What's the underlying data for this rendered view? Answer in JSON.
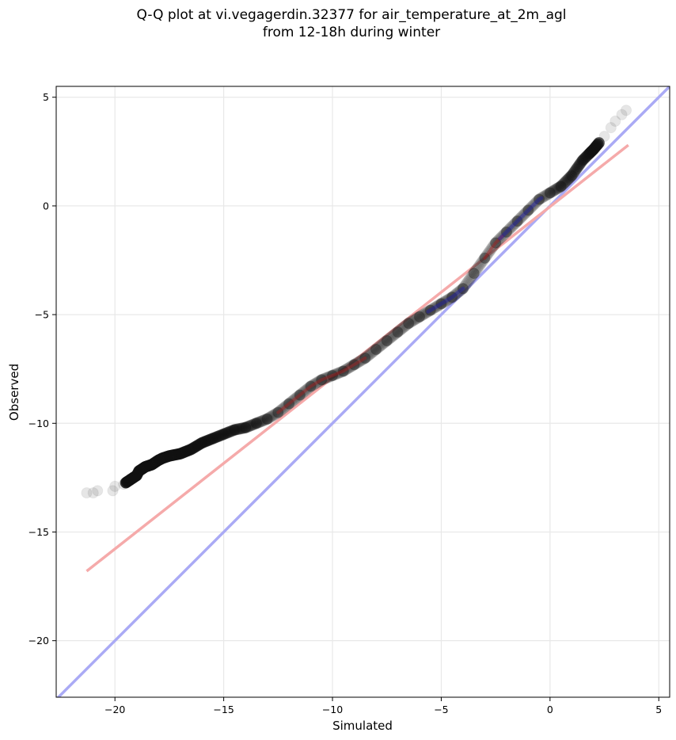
{
  "chart_data": {
    "type": "scatter",
    "title": "Q-Q plot at vi.vegagerdin.32377 for air_temperature_at_2m_agl",
    "subtitle": "from 12-18h during winter",
    "xlabel": "Simulated",
    "ylabel": "Observed",
    "xlim": [
      -22.7,
      5.5
    ],
    "ylim": [
      -22.6,
      5.5
    ],
    "xticks": [
      -20,
      -15,
      -10,
      -5,
      0,
      5
    ],
    "yticks": [
      -20,
      -15,
      -10,
      -5,
      0,
      5
    ],
    "xtick_labels": [
      "−20",
      "−15",
      "−10",
      "−5",
      "0",
      "5"
    ],
    "ytick_labels": [
      "−20",
      "−15",
      "−10",
      "−5",
      "0",
      "5"
    ],
    "grid": true,
    "legend": "none",
    "colors": {
      "points": "#333333",
      "identity_line": "#aaaaf5",
      "fit_line": "#f5aaaa",
      "overlay_blue": "#2020b0",
      "overlay_red": "#b02020",
      "grid": "#e8e8e8"
    },
    "series": [
      {
        "type": "quantiles",
        "x": [
          -21.3,
          -21.0,
          -20.8,
          -20.1,
          -20.0,
          -19.6,
          -19.3,
          -19.0,
          -18.9,
          -18.6,
          -18.3,
          -18.0,
          -17.8,
          -17.5,
          -17.0,
          -16.5,
          -16.0,
          -15.5,
          -15.0,
          -14.5,
          -14.0,
          -13.5,
          -13.0,
          -12.5,
          -12.0,
          -11.5,
          -11.0,
          -10.5,
          -10.0,
          -9.5,
          -9.0,
          -8.5,
          -8.0,
          -7.5,
          -7.0,
          -6.5,
          -6.0,
          -5.5,
          -5.0,
          -4.5,
          -4.0,
          -3.5,
          -3.0,
          -2.5,
          -2.0,
          -1.5,
          -1.0,
          -0.5,
          0.0,
          0.5,
          1.0,
          1.5,
          2.0,
          2.5,
          2.8,
          3.0,
          3.3,
          3.5
        ],
        "y": [
          -13.2,
          -13.2,
          -13.1,
          -13.1,
          -12.9,
          -12.8,
          -12.6,
          -12.4,
          -12.2,
          -12.0,
          -11.9,
          -11.7,
          -11.6,
          -11.5,
          -11.4,
          -11.2,
          -10.9,
          -10.7,
          -10.5,
          -10.3,
          -10.2,
          -10.0,
          -9.8,
          -9.5,
          -9.1,
          -8.7,
          -8.3,
          -8.0,
          -7.8,
          -7.6,
          -7.3,
          -7.0,
          -6.6,
          -6.2,
          -5.8,
          -5.4,
          -5.1,
          -4.8,
          -4.5,
          -4.2,
          -3.8,
          -3.1,
          -2.4,
          -1.7,
          -1.2,
          -0.7,
          -0.2,
          0.3,
          0.6,
          0.9,
          1.4,
          2.1,
          2.6,
          3.2,
          3.6,
          3.9,
          4.2,
          4.4
        ]
      },
      {
        "type": "identity_line",
        "x": [
          -22.7,
          5.5
        ],
        "y": [
          -22.7,
          5.5
        ]
      },
      {
        "type": "fit_line",
        "x": [
          -21.3,
          3.6
        ],
        "y": [
          -16.8,
          2.8
        ]
      }
    ]
  }
}
